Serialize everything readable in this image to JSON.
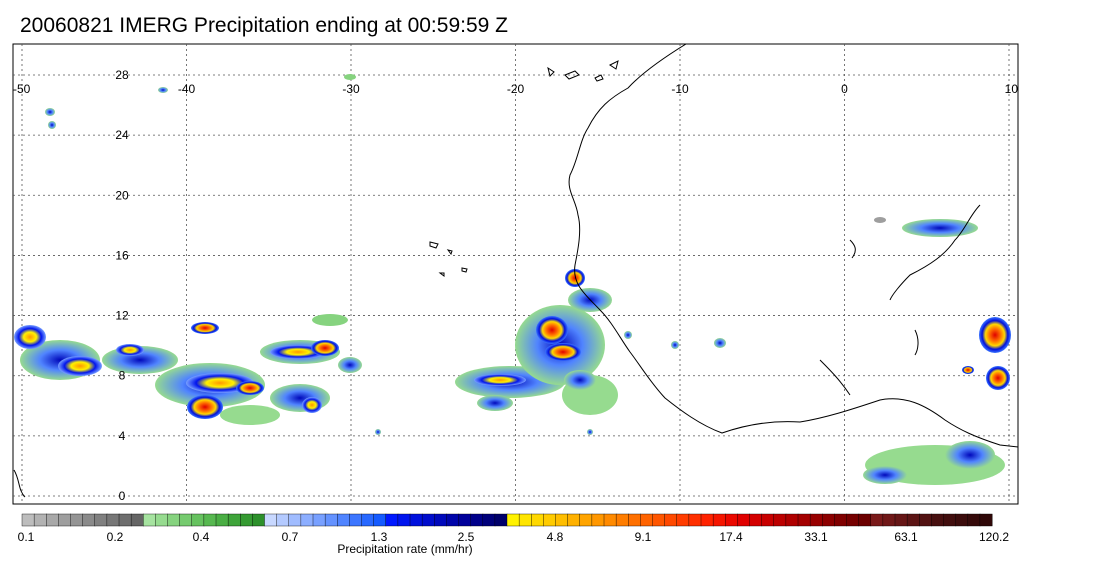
{
  "title": "20060821 IMERG Precipitation ending at 00:59:59 Z",
  "map": {
    "lon_range": [
      -50,
      10
    ],
    "lat_range": [
      -1,
      31
    ],
    "lon_ticks": [
      -50,
      -40,
      -30,
      -20,
      -10,
      0,
      10
    ],
    "lon_tick_labels": [
      "-50",
      "-40",
      "-30",
      "-20",
      "-10",
      "0",
      "10"
    ],
    "lat_ticks": [
      0,
      4,
      8,
      12,
      16,
      20,
      24,
      28
    ],
    "lat_tick_labels": [
      "0",
      "4",
      "8",
      "12",
      "16",
      "20",
      "24",
      "28"
    ],
    "grid": "dotted"
  },
  "colorbar": {
    "label": "Precipitation rate (mm/hr)",
    "tick_labels": [
      "0.1",
      "0.2",
      "0.4",
      "0.7",
      "1.3",
      "2.5",
      "4.8",
      "9.1",
      "17.4",
      "33.1",
      "63.1",
      "120.2"
    ],
    "colors": [
      "#bdbdbd",
      "#b2b2b2",
      "#a8a8a8",
      "#9e9e9e",
      "#949494",
      "#8a8a8a",
      "#808080",
      "#777777",
      "#6e6e6e",
      "#656565",
      "#a6e3a0",
      "#96db8f",
      "#86d37f",
      "#76cb6f",
      "#66c25f",
      "#57b850",
      "#4aae44",
      "#3fa43a",
      "#359a32",
      "#2d902b",
      "#c8d8ff",
      "#b4caff",
      "#a0bcff",
      "#8caeff",
      "#78a0ff",
      "#6492ff",
      "#5084ff",
      "#3c76ff",
      "#2868ff",
      "#145aff",
      "#0018ff",
      "#0014ee",
      "#0010dd",
      "#000ccc",
      "#0008bb",
      "#0004aa",
      "#00009a",
      "#00008a",
      "#00007a",
      "#00006a",
      "#fff200",
      "#ffe500",
      "#ffd800",
      "#ffcb00",
      "#ffbe00",
      "#ffb100",
      "#ffa400",
      "#ff9700",
      "#ff8a00",
      "#ff7d00",
      "#ff7000",
      "#ff6300",
      "#ff5600",
      "#ff4900",
      "#ff3c00",
      "#ff2f00",
      "#ff2200",
      "#f51500",
      "#eb0800",
      "#e00000",
      "#d40000",
      "#c80000",
      "#bc0000",
      "#b00000",
      "#a40000",
      "#980000",
      "#8c0000",
      "#800000",
      "#760000",
      "#6c0000",
      "#7a1a1a",
      "#701818",
      "#661616",
      "#5c1414",
      "#521212",
      "#481010",
      "#420e0e",
      "#3c0c0c",
      "#360a0a",
      "#300808"
    ]
  }
}
